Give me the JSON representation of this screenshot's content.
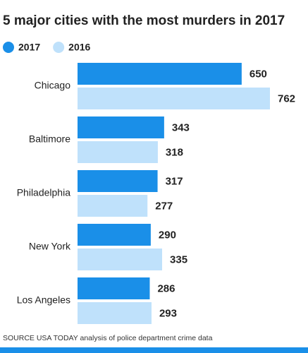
{
  "chart_data": {
    "type": "bar",
    "orientation": "horizontal",
    "title": "5 major cities with the most murders in 2017",
    "categories": [
      "Chicago",
      "Baltimore",
      "Philadelphia",
      "New York",
      "Los Angeles"
    ],
    "series": [
      {
        "name": "2017",
        "color": "#1a8fe8",
        "values": [
          650,
          343,
          317,
          290,
          286
        ]
      },
      {
        "name": "2016",
        "color": "#bfe1fb",
        "values": [
          762,
          318,
          277,
          335,
          293
        ]
      }
    ],
    "source": "SOURCE USA TODAY analysis of police department crime data"
  }
}
